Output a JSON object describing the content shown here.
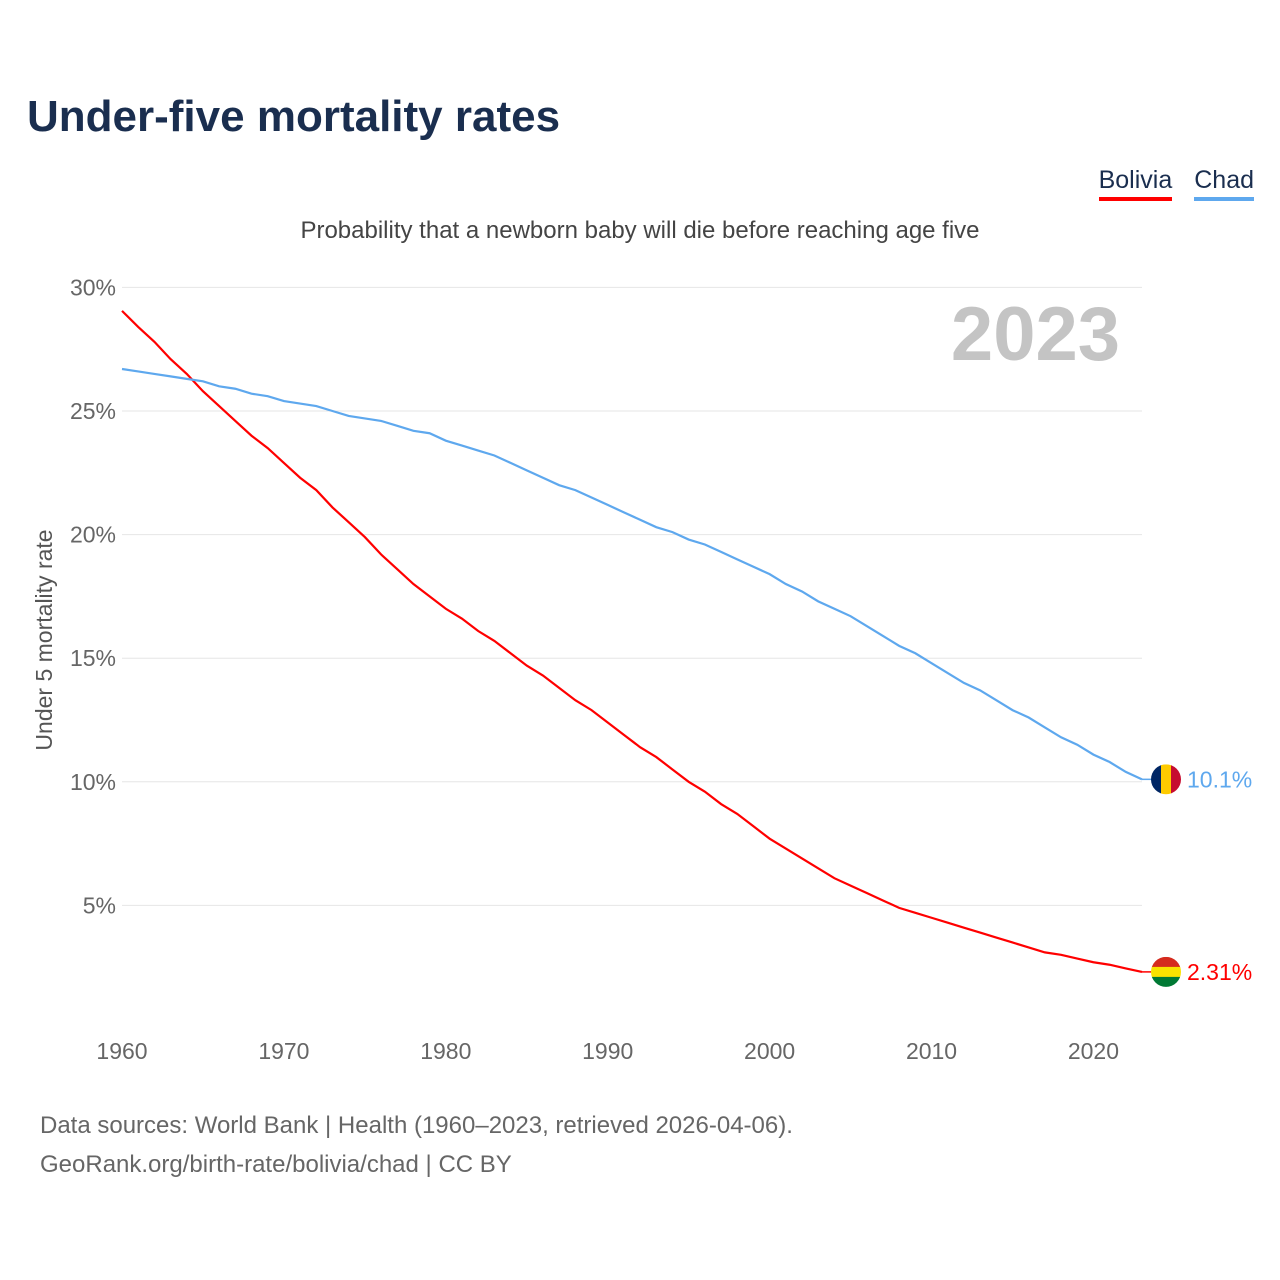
{
  "title": "Under-five mortality rates",
  "subtitle": "Probability that a newborn baby will die before reaching age five",
  "footer": {
    "line1": "Data sources: World Bank | Health (1960–2023, retrieved 2026-04-06).",
    "line2": "GeoRank.org/birth-rate/bolivia/chad | CC BY"
  },
  "chart_data": {
    "type": "line",
    "title": "Under-five mortality rates",
    "ylabel": "Under 5 mortality rate",
    "xlabel": "",
    "year_label": "2023",
    "xlim": [
      1960,
      2023
    ],
    "ylim": [
      0,
      30
    ],
    "x_ticks": [
      "1960",
      "1970",
      "1980",
      "1990",
      "2000",
      "2010",
      "2020"
    ],
    "y_ticks": [
      "5%",
      "10%",
      "15%",
      "20%",
      "25%",
      "30%"
    ],
    "grid": true,
    "legend_placement": "top-right",
    "series": [
      {
        "name": "Bolivia",
        "color": "#ff0000",
        "end_label": "2.31%",
        "flag": "bolivia-flag",
        "values": [
          29.05,
          28.4,
          27.8,
          27.1,
          26.5,
          25.8,
          25.2,
          24.6,
          24.0,
          23.5,
          22.9,
          22.3,
          21.8,
          21.1,
          20.5,
          19.9,
          19.2,
          18.6,
          18.0,
          17.5,
          17.0,
          16.6,
          16.1,
          15.7,
          15.2,
          14.7,
          14.3,
          13.8,
          13.3,
          12.9,
          12.4,
          11.9,
          11.4,
          11.0,
          10.5,
          10.0,
          9.6,
          9.1,
          8.7,
          8.2,
          7.7,
          7.3,
          6.9,
          6.5,
          6.1,
          5.8,
          5.5,
          5.2,
          4.9,
          4.7,
          4.5,
          4.3,
          4.1,
          3.9,
          3.7,
          3.5,
          3.3,
          3.1,
          3.0,
          2.85,
          2.7,
          2.6,
          2.45,
          2.31
        ]
      },
      {
        "name": "Chad",
        "color": "#5ea8ee",
        "end_label": "10.1%",
        "flag": "chad-flag",
        "values": [
          26.7,
          26.6,
          26.5,
          26.4,
          26.3,
          26.2,
          26.0,
          25.9,
          25.7,
          25.6,
          25.4,
          25.3,
          25.2,
          25.0,
          24.8,
          24.7,
          24.6,
          24.4,
          24.2,
          24.1,
          23.8,
          23.6,
          23.4,
          23.2,
          22.9,
          22.6,
          22.3,
          22.0,
          21.8,
          21.5,
          21.2,
          20.9,
          20.6,
          20.3,
          20.1,
          19.8,
          19.6,
          19.3,
          19.0,
          18.7,
          18.4,
          18.0,
          17.7,
          17.3,
          17.0,
          16.7,
          16.3,
          15.9,
          15.5,
          15.2,
          14.8,
          14.4,
          14.0,
          13.7,
          13.3,
          12.9,
          12.6,
          12.2,
          11.8,
          11.5,
          11.1,
          10.8,
          10.4,
          10.1
        ]
      }
    ]
  }
}
